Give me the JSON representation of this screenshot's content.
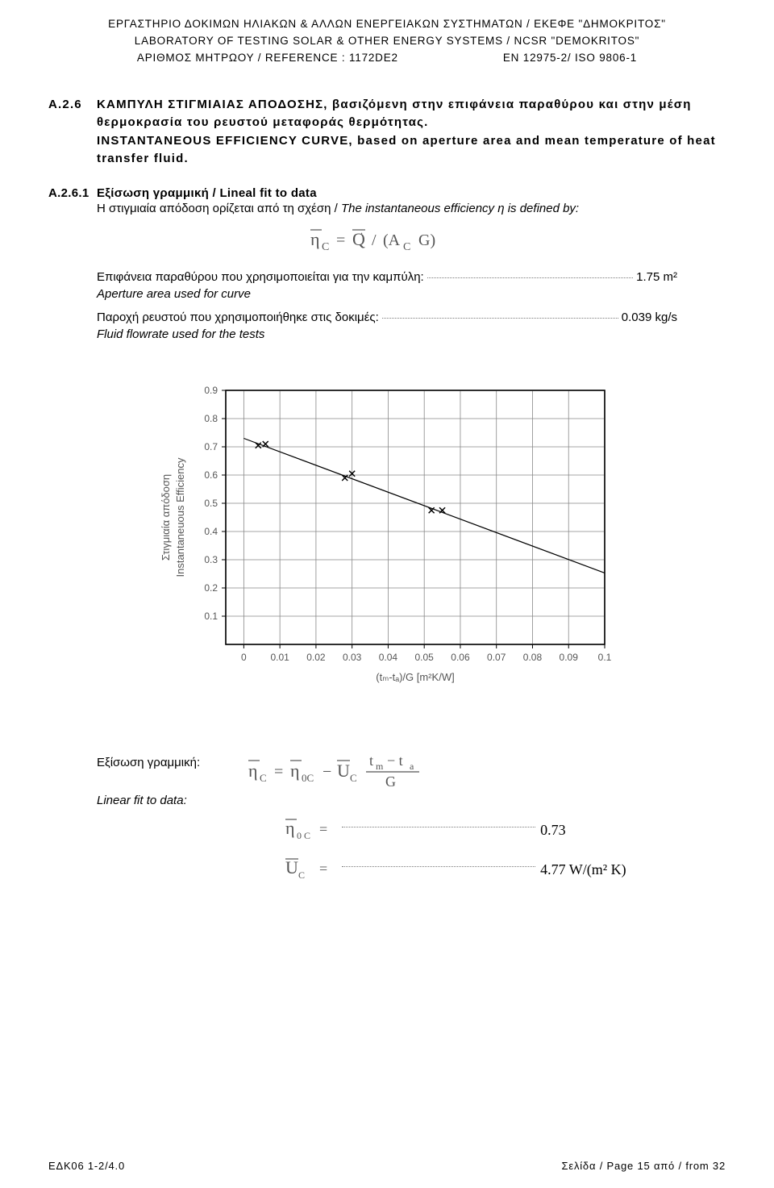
{
  "header": {
    "line1": "ΕΡΓΑΣΤΗΡΙΟ ΔΟΚΙΜΩΝ ΗΛΙΑΚΩΝ & ΑΛΛΩΝ ΕΝΕΡΓΕΙΑΚΩΝ ΣΥΣΤΗΜΑΤΩΝ / ΕΚΕΦΕ \"ΔΗΜΟΚΡΙΤΟΣ\"",
    "line2": "LABORATORY OF TESTING SOLAR & OTHER ENERGY SYSTEMS / NCSR \"DEMOKRITOS\"",
    "ref_label": "ΑΡΙΘΜΟΣ ΜΗΤΡΩΟΥ / REFERENCE : 1172DE2",
    "standard": "EN 12975-2/ ISO 9806-1"
  },
  "section": {
    "number": "Α.2.6",
    "title_gr": "ΚΑΜΠΥΛΗ ΣΤΙΓΜΙΑΙΑΣ ΑΠΟΔΟΣΗΣ, βασιζόμενη στην επιφάνεια παραθύρου και στην μέση θερμοκρασία του ρευστού μεταφοράς θερμότητας.",
    "title_en": "INSTANTANEOUS EFFICIENCY CURVE, based on aperture area and mean temperature of heat transfer fluid."
  },
  "subsection": {
    "number": "Α.2.6.1",
    "title": "Εξίσωση γραμμική / Lineal fit to data",
    "body_gr": "Η στιγμιαία απόδοση ορίζεται από τη σχέση / ",
    "body_en": "The instantaneous efficiency η is defined by:",
    "formula_tex": "η̄_C = Q̇ / (A_C G)"
  },
  "params": {
    "aperture_label_gr": "Επιφάνεια παραθύρου που χρησιμοποιείται για την καμπύλη:",
    "aperture_value": "1.75 m²",
    "aperture_label_en": "Aperture area used for curve",
    "flow_label_gr": "Παροχή ρευστού που χρησιμοποιήθηκε στις δοκιμές:",
    "flow_value": "0.039 kg/s",
    "flow_label_en": "Fluid flowrate used for the tests"
  },
  "chart": {
    "type": "scatter_with_line",
    "ylabel_gr": "Στιγμιαία απόδοση",
    "ylabel_en": "Instantaneuous Efficiency",
    "xlabel": "(tₘ-tₐ)/G   [m²K/W]",
    "xlim": [
      -0.005,
      0.1
    ],
    "ylim": [
      0,
      0.9
    ],
    "xticks": [
      0,
      0.01,
      0.02,
      0.03,
      0.04,
      0.05,
      0.06,
      0.07,
      0.08,
      0.09,
      0.1
    ],
    "yticks": [
      0.1,
      0.2,
      0.3,
      0.4,
      0.5,
      0.6,
      0.7,
      0.8,
      0.9
    ],
    "line": {
      "x1": 0,
      "y1": 0.73,
      "x2": 0.1,
      "y2": 0.253
    },
    "points": [
      {
        "x": 0.004,
        "y": 0.705
      },
      {
        "x": 0.006,
        "y": 0.71
      },
      {
        "x": 0.028,
        "y": 0.59
      },
      {
        "x": 0.03,
        "y": 0.605
      },
      {
        "x": 0.052,
        "y": 0.475
      },
      {
        "x": 0.055,
        "y": 0.475
      }
    ],
    "line_color": "#000000",
    "marker_color": "#000000",
    "grid_color": "#888888",
    "axis_color": "#000000",
    "background_color": "#ffffff",
    "font_color": "#555555",
    "tick_fontsize": 12,
    "label_fontsize": 13,
    "marker_size": 7,
    "line_width": 1.2
  },
  "linear_fit": {
    "label_gr": "Εξίσωση γραμμική:",
    "label_en": "Linear fit to data:",
    "main_formula_tex": "η̄_C = η̄_0C − Ū_C (tₘ−tₐ)/G",
    "eta0_value": "0.73",
    "uc_value": "4.77 W/(m² K)"
  },
  "footer": {
    "left": "ΕΔΚ06  1-2/4.0",
    "right": "Σελίδα / Page   15  από / from  32"
  }
}
